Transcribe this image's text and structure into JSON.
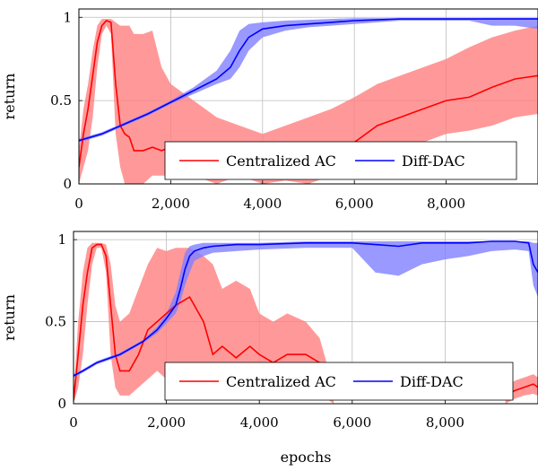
{
  "chart_data": [
    {
      "type": "line",
      "title": "",
      "xlabel": "",
      "ylabel": "return",
      "xlim": [
        0,
        10000
      ],
      "ylim": [
        0,
        1.05
      ],
      "x_ticks": [
        0,
        2000,
        4000,
        6000,
        8000
      ],
      "x_tick_labels": [
        "0",
        "2,000",
        "4,000",
        "6,000",
        "8,000"
      ],
      "y_ticks": [
        0,
        0.5,
        1
      ],
      "y_tick_labels": [
        "0",
        "0.5",
        "1"
      ],
      "grid": true,
      "legend": {
        "placement": "bottom-right",
        "orientation": "horizontal"
      },
      "series": [
        {
          "name": "Centralized AC",
          "color": "#ff0000",
          "band_color": "#ff8080",
          "x": [
            0,
            100,
            200,
            300,
            400,
            500,
            600,
            700,
            800,
            900,
            1000,
            1100,
            1200,
            1400,
            1600,
            1800,
            2000,
            2500,
            3000,
            3500,
            4000,
            4500,
            5000,
            5500,
            6000,
            6500,
            7000,
            7500,
            8000,
            8500,
            9000,
            9500,
            10000
          ],
          "mean": [
            0.1,
            0.3,
            0.45,
            0.65,
            0.85,
            0.95,
            0.98,
            0.97,
            0.6,
            0.35,
            0.3,
            0.28,
            0.2,
            0.2,
            0.22,
            0.2,
            0.22,
            0.2,
            0.15,
            0.18,
            0.12,
            0.14,
            0.1,
            0.2,
            0.25,
            0.35,
            0.4,
            0.45,
            0.5,
            0.52,
            0.58,
            0.63,
            0.65
          ],
          "upper": [
            0.2,
            0.45,
            0.6,
            0.8,
            0.95,
            0.99,
            0.99,
            0.99,
            0.97,
            0.95,
            0.95,
            0.95,
            0.9,
            0.9,
            0.92,
            0.7,
            0.6,
            0.5,
            0.4,
            0.35,
            0.3,
            0.35,
            0.4,
            0.45,
            0.52,
            0.6,
            0.65,
            0.7,
            0.75,
            0.82,
            0.88,
            0.92,
            0.95
          ],
          "lower": [
            0.0,
            0.1,
            0.2,
            0.4,
            0.7,
            0.9,
            0.95,
            0.9,
            0.3,
            0.1,
            0.0,
            0.0,
            0.0,
            0.0,
            0.05,
            0.05,
            0.05,
            0.05,
            0.0,
            0.05,
            0.0,
            0.02,
            0.0,
            0.05,
            0.08,
            0.15,
            0.2,
            0.25,
            0.3,
            0.32,
            0.35,
            0.4,
            0.42
          ]
        },
        {
          "name": "Diff-DAC",
          "color": "#0000ff",
          "band_color": "#8080ff",
          "x": [
            0,
            500,
            1000,
            1500,
            2000,
            2500,
            3000,
            3300,
            3500,
            3700,
            4000,
            4500,
            5000,
            5500,
            6000,
            6500,
            7000,
            7500,
            8000,
            8500,
            9000,
            9500,
            10000
          ],
          "mean": [
            0.26,
            0.3,
            0.36,
            0.42,
            0.49,
            0.56,
            0.63,
            0.7,
            0.8,
            0.88,
            0.93,
            0.95,
            0.96,
            0.97,
            0.98,
            0.985,
            0.99,
            0.99,
            0.99,
            0.99,
            0.99,
            0.99,
            0.99
          ],
          "upper": [
            0.27,
            0.31,
            0.37,
            0.43,
            0.5,
            0.58,
            0.68,
            0.8,
            0.92,
            0.96,
            0.97,
            0.98,
            0.985,
            0.99,
            0.995,
            0.995,
            0.995,
            0.995,
            0.995,
            0.995,
            0.995,
            0.995,
            0.995
          ],
          "lower": [
            0.25,
            0.29,
            0.35,
            0.41,
            0.48,
            0.54,
            0.6,
            0.63,
            0.7,
            0.8,
            0.88,
            0.92,
            0.94,
            0.95,
            0.96,
            0.97,
            0.98,
            0.98,
            0.98,
            0.98,
            0.95,
            0.95,
            0.93
          ]
        }
      ]
    },
    {
      "type": "line",
      "title": "",
      "xlabel": "epochs",
      "ylabel": "return",
      "xlim": [
        0,
        10000
      ],
      "ylim": [
        0,
        1.05
      ],
      "x_ticks": [
        0,
        2000,
        4000,
        6000,
        8000
      ],
      "x_tick_labels": [
        "0",
        "2,000",
        "4,000",
        "6,000",
        "8,000"
      ],
      "y_ticks": [
        0,
        0.5,
        1
      ],
      "y_tick_labels": [
        "0",
        "0.5",
        "1"
      ],
      "grid": true,
      "legend": {
        "placement": "bottom-right",
        "orientation": "horizontal"
      },
      "series": [
        {
          "name": "Centralized AC",
          "color": "#ff0000",
          "band_color": "#ff8080",
          "x": [
            0,
            100,
            200,
            300,
            400,
            500,
            600,
            700,
            800,
            900,
            1000,
            1200,
            1400,
            1600,
            1800,
            2000,
            2200,
            2500,
            2800,
            3000,
            3200,
            3500,
            3800,
            4000,
            4300,
            4600,
            5000,
            5300,
            5500,
            5600
          ],
          "mean": [
            0.02,
            0.3,
            0.6,
            0.8,
            0.95,
            0.97,
            0.97,
            0.9,
            0.6,
            0.3,
            0.2,
            0.2,
            0.3,
            0.45,
            0.5,
            0.55,
            0.6,
            0.65,
            0.5,
            0.3,
            0.35,
            0.28,
            0.35,
            0.3,
            0.25,
            0.3,
            0.3,
            0.25,
            0.12,
            0.05
          ],
          "upper": [
            0.05,
            0.5,
            0.8,
            0.95,
            0.98,
            0.98,
            0.98,
            0.97,
            0.85,
            0.6,
            0.5,
            0.55,
            0.7,
            0.85,
            0.95,
            0.93,
            0.95,
            0.95,
            0.9,
            0.85,
            0.7,
            0.75,
            0.7,
            0.55,
            0.5,
            0.55,
            0.5,
            0.4,
            0.2,
            0.1
          ],
          "lower": [
            0.0,
            0.1,
            0.3,
            0.6,
            0.85,
            0.95,
            0.95,
            0.8,
            0.3,
            0.1,
            0.05,
            0.05,
            0.1,
            0.15,
            0.2,
            0.15,
            0.25,
            0.2,
            0.1,
            0.1,
            0.05,
            0.1,
            0.1,
            0.05,
            0.05,
            0.05,
            0.05,
            0.05,
            0.02,
            0.0
          ]
        },
        {
          "name": "Centralized AC",
          "color": "#ff0000",
          "band_color": "#ff8080",
          "x": [
            9300,
            9500,
            9700,
            9900,
            10000
          ],
          "mean": [
            0.05,
            0.08,
            0.1,
            0.12,
            0.1
          ],
          "upper": [
            0.1,
            0.14,
            0.16,
            0.18,
            0.16
          ],
          "lower": [
            0.0,
            0.03,
            0.05,
            0.06,
            0.05
          ]
        },
        {
          "name": "Diff-DAC",
          "color": "#0000ff",
          "band_color": "#8080ff",
          "x": [
            0,
            200,
            500,
            1000,
            1500,
            1800,
            2000,
            2200,
            2300,
            2400,
            2500,
            2600,
            2800,
            3000,
            3500,
            4000,
            5000,
            6000,
            6500,
            7000,
            7500,
            8000,
            8500,
            9000,
            9500,
            9800,
            9900,
            10000
          ],
          "mean": [
            0.17,
            0.2,
            0.25,
            0.3,
            0.38,
            0.45,
            0.52,
            0.6,
            0.7,
            0.82,
            0.9,
            0.93,
            0.95,
            0.96,
            0.97,
            0.97,
            0.98,
            0.98,
            0.97,
            0.96,
            0.98,
            0.98,
            0.98,
            0.99,
            0.99,
            0.98,
            0.85,
            0.8
          ],
          "upper": [
            0.18,
            0.21,
            0.26,
            0.31,
            0.39,
            0.47,
            0.55,
            0.68,
            0.8,
            0.92,
            0.96,
            0.97,
            0.98,
            0.98,
            0.98,
            0.98,
            0.99,
            0.99,
            0.99,
            0.99,
            0.99,
            0.99,
            0.99,
            0.99,
            0.99,
            0.99,
            0.98,
            0.98
          ],
          "lower": [
            0.16,
            0.19,
            0.24,
            0.29,
            0.37,
            0.43,
            0.49,
            0.55,
            0.62,
            0.72,
            0.8,
            0.87,
            0.9,
            0.92,
            0.93,
            0.94,
            0.95,
            0.95,
            0.8,
            0.78,
            0.85,
            0.88,
            0.9,
            0.93,
            0.94,
            0.93,
            0.72,
            0.65
          ]
        }
      ]
    }
  ]
}
